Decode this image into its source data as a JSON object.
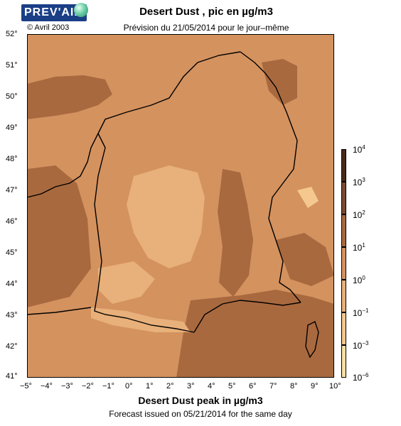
{
  "header": {
    "logo_text": "PREV'AIR",
    "copyright": "© Avril 2003",
    "title": "Desert Dust , pic en µg/m3",
    "subtitle": "Prévision du 21/05/2014 pour le jour–même"
  },
  "footer": {
    "title": "Desert Dust peak in µg/m3",
    "subtitle": "Forecast issued on 05/21/2014 for the same day"
  },
  "axes": {
    "lon_labels": [
      "−5°",
      "−4°",
      "−3°",
      "−2°",
      "−1°",
      "0°",
      "1°",
      "2°",
      "3°",
      "4°",
      "5°",
      "6°",
      "7°",
      "8°",
      "9°",
      "10°"
    ],
    "lat_labels": [
      "52°",
      "51°",
      "50°",
      "49°",
      "48°",
      "47°",
      "46°",
      "45°",
      "44°",
      "43°",
      "42°",
      "41°"
    ],
    "lon_range": [
      -5,
      10
    ],
    "lat_range": [
      41,
      52
    ]
  },
  "colorbar": {
    "labels": [
      {
        "base": "10",
        "exp": "4"
      },
      {
        "base": "10",
        "exp": "3"
      },
      {
        "base": "10",
        "exp": "2"
      },
      {
        "base": "10",
        "exp": "1"
      },
      {
        "base": "10",
        "exp": "0"
      },
      {
        "base": "10",
        "exp": "−1"
      },
      {
        "base": "10",
        "exp": "−3"
      },
      {
        "base": "10",
        "exp": "−6"
      }
    ],
    "colors": [
      "#4a2a1b",
      "#7a4a30",
      "#a9693f",
      "#d4925f",
      "#e8b07a",
      "#f4c88e",
      "#fbdfa4",
      "#fdf0c4"
    ]
  },
  "map_colors": {
    "base": "#d4925f",
    "dark": "#a9693f",
    "light": "#e8b07a",
    "lightest": "#f4c88e",
    "border": "#000000"
  }
}
